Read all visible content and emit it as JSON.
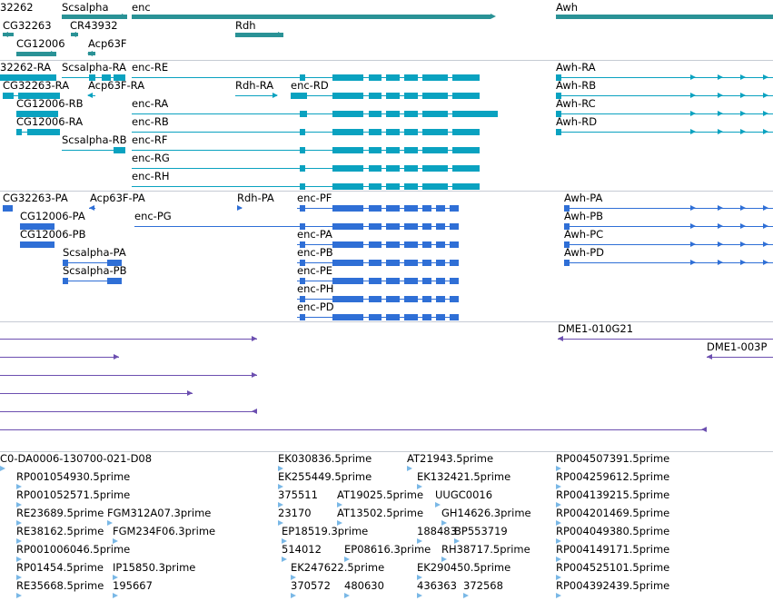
{
  "colors": {
    "gene": "#2a9296",
    "rna": "#0aa2c0",
    "protein": "#2f6fd6",
    "clone": "#6c4fb0",
    "est": "#7ab8e6",
    "separator": "#c6cbd4"
  },
  "tracks": {
    "genes": {
      "labels": [
        "32262",
        "Scsalpha",
        "enc",
        "Awh",
        "CG32263",
        "CR43932",
        "Rdh",
        "CG12006",
        "Acp63F"
      ]
    },
    "transcripts": {
      "labels": [
        "32262-RA",
        "Scsalpha-RA",
        "enc-RE",
        "Awh-RA",
        "CG32263-RA",
        "Acp63F-RA",
        "Rdh-RA",
        "enc-RD",
        "Awh-RB",
        "CG12006-RB",
        "enc-RA",
        "Awh-RC",
        "CG12006-RA",
        "enc-RB",
        "Awh-RD",
        "Scsalpha-RB",
        "enc-RF",
        "enc-RG",
        "enc-RH"
      ]
    },
    "proteins": {
      "labels": [
        "CG32263-PA",
        "Acp63F-PA",
        "Rdh-PA",
        "enc-PF",
        "Awh-PA",
        "CG12006-PA",
        "enc-PG",
        "Awh-PB",
        "CG12006-PB",
        "enc-PA",
        "Awh-PC",
        "Scsalpha-PA",
        "enc-PB",
        "Awh-PD",
        "Scsalpha-PB",
        "enc-PE",
        "enc-PH",
        "enc-PD"
      ]
    },
    "clones": {
      "labels": [
        "DME1-010G21",
        "DME1-003P"
      ]
    },
    "ests": {
      "labels": [
        "C0-DA0006-130700-021-D08",
        "EK030836.5prime",
        "AT21943.5prime",
        "RP004507391.5prime",
        "RP001054930.5prime",
        "EK255449.5prime",
        "EK132421.5prime",
        "RP004259612.5prime",
        "RP001052571.5prime",
        "375511",
        "AT19025.5prime",
        "UUGC0016",
        "RP004139215.5prime",
        "RE23689.5prime",
        "FGM312A07.3prime",
        "23170",
        "AT13502.5prime",
        "GH14626.3prime",
        "RP004201469.5prime",
        "RE38162.5prime",
        "FGM234F06.3prime",
        "EP18519.3prime",
        "188483",
        "BP553719",
        "RP004049380.5prime",
        "RP001006046.5prime",
        "514012",
        "EP08616.3prime",
        "RH38717.5prime",
        "RP004149171.5prime",
        "RP01454.5prime",
        "IP15850.3prime",
        "EK247622.5prime",
        "EK290450.5prime",
        "RP004525101.5prime",
        "RE35668.5prime",
        "195667",
        "370572",
        "480630",
        "436363",
        "372568",
        "RP004392439.5prime"
      ]
    }
  }
}
